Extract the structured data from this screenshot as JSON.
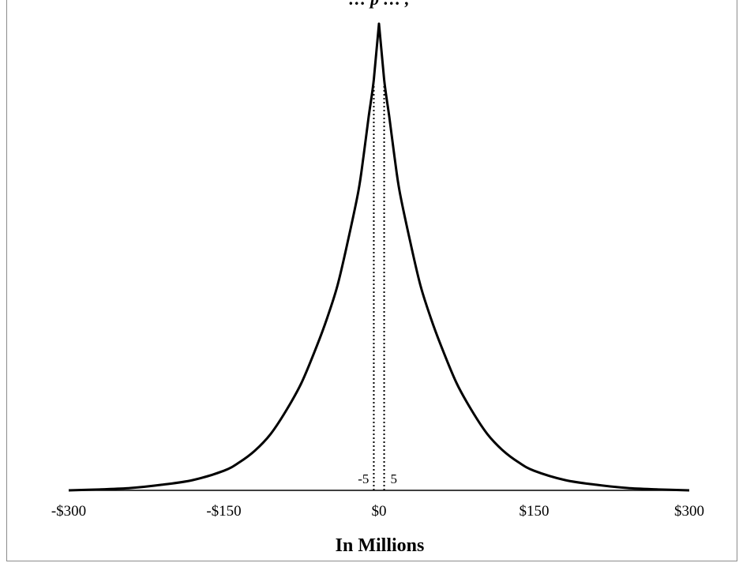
{
  "chart_data": {
    "type": "line",
    "title": "… p … ,",
    "xlabel": "In Millions",
    "ylabel": "",
    "xlim": [
      -300,
      300
    ],
    "x_ticks": [
      -300,
      -150,
      0,
      150,
      300
    ],
    "x_tick_labels": [
      "-$300",
      "-$150",
      "$0",
      "$150",
      "$300"
    ],
    "grid": false,
    "legend": "none",
    "series": [
      {
        "x": [
          -300,
          -270,
          -240,
          -210,
          -180,
          -150,
          -135,
          -120,
          -105,
          -90,
          -75,
          -60,
          -50,
          -40,
          -30,
          -20,
          -15,
          -10,
          -5,
          0,
          5,
          10,
          15,
          20,
          30,
          40,
          50,
          60,
          75,
          90,
          105,
          120,
          135,
          150,
          180,
          210,
          240,
          270,
          300
        ],
        "y": [
          0.0,
          0.002,
          0.005,
          0.012,
          0.022,
          0.042,
          0.06,
          0.085,
          0.12,
          0.17,
          0.23,
          0.31,
          0.37,
          0.44,
          0.535,
          0.64,
          0.715,
          0.8,
          0.88,
          1.0,
          0.88,
          0.8,
          0.715,
          0.64,
          0.535,
          0.44,
          0.37,
          0.31,
          0.23,
          0.17,
          0.12,
          0.085,
          0.06,
          0.042,
          0.022,
          0.012,
          0.005,
          0.002,
          0.0
        ],
        "color": "#000000"
      }
    ],
    "reference_lines": [
      {
        "x": -5,
        "label": "-5",
        "style": "dotted"
      },
      {
        "x": 5,
        "label": "5",
        "style": "dotted"
      }
    ]
  }
}
